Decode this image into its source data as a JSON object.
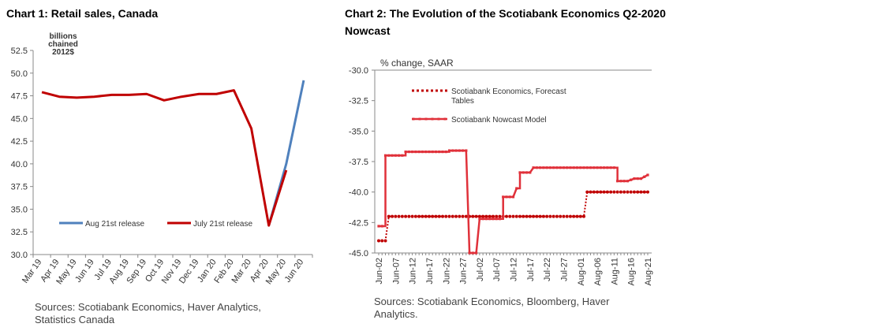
{
  "chart_data": [
    {
      "type": "line",
      "title": "Chart 1: Retail sales, Canada",
      "ylabel": "billions chained 2012$",
      "ylabel_lines": [
        "billions",
        "chained",
        "2012$"
      ],
      "ylim": [
        30.0,
        52.5
      ],
      "yticks": [
        "30.0",
        "32.5",
        "35.0",
        "37.5",
        "40.0",
        "42.5",
        "45.0",
        "47.5",
        "50.0",
        "52.5"
      ],
      "categories": [
        "Mar 19",
        "Apr 19",
        "May 19",
        "Jun 19",
        "Jul 19",
        "Aug 19",
        "Sep 19",
        "Oct 19",
        "Nov 19",
        "Dec 19",
        "Jan 20",
        "Feb 20",
        "Mar 20",
        "Apr 20",
        "May 20",
        "Jun 20"
      ],
      "series": [
        {
          "name": "Aug 21st release",
          "color": "#4F81BD",
          "values": [
            null,
            null,
            null,
            null,
            null,
            null,
            null,
            null,
            null,
            null,
            null,
            null,
            null,
            33.2,
            40.0,
            49.2
          ]
        },
        {
          "name": "July 21st release",
          "color": "#C00000",
          "values": [
            47.9,
            47.4,
            47.3,
            47.4,
            47.6,
            47.6,
            47.7,
            47.0,
            47.4,
            47.7,
            47.7,
            48.1,
            43.9,
            33.2,
            39.3,
            null
          ]
        }
      ],
      "source": "Sources: Scotiabank Economics, Haver Analytics, Statistics Canada"
    },
    {
      "type": "line",
      "title": "Chart 2: The Evolution of the Scotiabank Economics Q2-2020 Nowcast",
      "ylabel": "% change, SAAR",
      "ylim": [
        -45.0,
        -30.0
      ],
      "yticks": [
        "-45.0",
        "-42.5",
        "-40.0",
        "-37.5",
        "-35.0",
        "-32.5",
        "-30.0"
      ],
      "x_start": "Jun-02",
      "x_end": "Aug-21",
      "xticks": [
        {
          "label": "Jun-02",
          "day": 0
        },
        {
          "label": "Jun-07",
          "day": 5
        },
        {
          "label": "Jun-12",
          "day": 10
        },
        {
          "label": "Jun-17",
          "day": 15
        },
        {
          "label": "Jun-22",
          "day": 20
        },
        {
          "label": "Jun-27",
          "day": 25
        },
        {
          "label": "Jul-02",
          "day": 30
        },
        {
          "label": "Jul-07",
          "day": 35
        },
        {
          "label": "Jul-12",
          "day": 40
        },
        {
          "label": "Jul-17",
          "day": 45
        },
        {
          "label": "Jul-22",
          "day": 50
        },
        {
          "label": "Jul-27",
          "day": 55
        },
        {
          "label": "Aug-01",
          "day": 60
        },
        {
          "label": "Aug-06",
          "day": 65
        },
        {
          "label": "Aug-11",
          "day": 70
        },
        {
          "label": "Aug-16",
          "day": 75
        },
        {
          "label": "Aug-21",
          "day": 80
        }
      ],
      "series": [
        {
          "name": "Scotiabank Economics, Forecast Tables",
          "name_lines": [
            "Scotiabank Economics, Forecast",
            "Tables"
          ],
          "color": "#C00000",
          "style": "dotted",
          "points": [
            [
              0,
              -44.0
            ],
            [
              2,
              -44.0
            ],
            [
              3,
              -42.0
            ],
            [
              61,
              -42.0
            ],
            [
              62,
              -40.0
            ],
            [
              80,
              -40.0
            ]
          ]
        },
        {
          "name": "Scotiabank Nowcast Model",
          "color": "#E0313A",
          "style": "solid-markers",
          "points": [
            [
              0,
              -42.8
            ],
            [
              2,
              -42.8
            ],
            [
              2,
              -37.0
            ],
            [
              8,
              -37.0
            ],
            [
              8,
              -36.7
            ],
            [
              21,
              -36.7
            ],
            [
              21,
              -36.6
            ],
            [
              26,
              -36.6
            ],
            [
              27,
              -45.0
            ],
            [
              29,
              -45.0
            ],
            [
              30,
              -42.2
            ],
            [
              37,
              -42.2
            ],
            [
              37,
              -40.4
            ],
            [
              40,
              -40.4
            ],
            [
              41,
              -39.7
            ],
            [
              42,
              -39.7
            ],
            [
              42,
              -38.4
            ],
            [
              45,
              -38.4
            ],
            [
              46,
              -38.0
            ],
            [
              71,
              -38.0
            ],
            [
              71,
              -39.1
            ],
            [
              74,
              -39.1
            ],
            [
              76,
              -38.9
            ],
            [
              78,
              -38.9
            ],
            [
              80,
              -38.6
            ]
          ]
        }
      ],
      "source": "Sources: Scotiabank Economics, Bloomberg, Haver Analytics."
    }
  ]
}
